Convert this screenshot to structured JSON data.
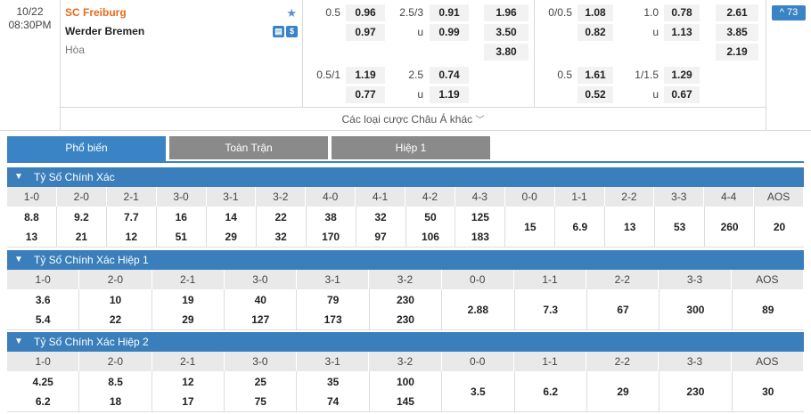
{
  "match": {
    "date": "10/22",
    "time": "08:30PM",
    "home": "SC Freiburg",
    "away": "Werder Bremen",
    "draw": "Hòa"
  },
  "icons": {
    "favorite": "star-icon",
    "stats": "stats-icon",
    "dollar": "dollar-icon"
  },
  "odds": {
    "g1": {
      "r1": {
        "line": "0.5",
        "home": "0.96",
        "away": "0.97"
      },
      "r2": {
        "line": "0.5/1",
        "home": "1.19",
        "away": "0.77"
      }
    },
    "g2": {
      "r1": {
        "line": "2.5/3",
        "over": "0.91",
        "u": "u",
        "under": "0.99"
      },
      "r2": {
        "line": "2.5",
        "over": "0.74",
        "u": "u",
        "under": "1.19"
      }
    },
    "g3": {
      "h": "1.96",
      "a": "3.50",
      "d": "3.80"
    },
    "g4": {
      "r1": {
        "line": "0/0.5",
        "home": "1.08",
        "away": "0.82"
      },
      "r2": {
        "line": "0.5",
        "home": "1.61",
        "away": "0.52"
      }
    },
    "g5": {
      "r1": {
        "line": "1.0",
        "over": "0.78",
        "u": "u",
        "under": "1.13"
      },
      "r2": {
        "line": "1/1.5",
        "over": "1.29",
        "u": "u",
        "under": "0.67"
      }
    },
    "g6": {
      "h": "2.61",
      "a": "3.85",
      "d": "2.19"
    }
  },
  "more_label": "Các loại cược Châu Á khác",
  "more_count": "^ 73",
  "tabs": [
    "Phổ biến",
    "Toàn Trận",
    "Hiệp 1"
  ],
  "sections": [
    {
      "title": "Tỷ Số Chính Xác",
      "headers": [
        "1-0",
        "2-0",
        "2-1",
        "3-0",
        "3-1",
        "3-2",
        "4-0",
        "4-1",
        "4-2",
        "4-3",
        "0-0",
        "1-1",
        "2-2",
        "3-3",
        "4-4",
        "AOS"
      ],
      "top": [
        "8.8",
        "9.2",
        "7.7",
        "16",
        "14",
        "22",
        "38",
        "32",
        "50",
        "125",
        "15",
        "6.9",
        "13",
        "53",
        "260",
        "20"
      ],
      "bottom": [
        "13",
        "21",
        "12",
        "51",
        "29",
        "32",
        "170",
        "97",
        "106",
        "183",
        "",
        "",
        "",
        "",
        "",
        ""
      ]
    },
    {
      "title": "Tỷ Số Chính Xác Hiệp 1",
      "headers": [
        "1-0",
        "2-0",
        "2-1",
        "3-0",
        "3-1",
        "3-2",
        "0-0",
        "1-1",
        "2-2",
        "3-3",
        "AOS"
      ],
      "top": [
        "3.6",
        "10",
        "19",
        "40",
        "79",
        "230",
        "2.88",
        "7.3",
        "67",
        "300",
        "89"
      ],
      "bottom": [
        "5.4",
        "22",
        "29",
        "127",
        "173",
        "230",
        "",
        "",
        "",
        "",
        ""
      ]
    },
    {
      "title": "Tỷ Số Chính Xác Hiệp 2",
      "headers": [
        "1-0",
        "2-0",
        "2-1",
        "3-0",
        "3-1",
        "3-2",
        "0-0",
        "1-1",
        "2-2",
        "3-3",
        "AOS"
      ],
      "top": [
        "4.25",
        "8.5",
        "12",
        "25",
        "35",
        "100",
        "3.5",
        "6.2",
        "29",
        "230",
        "30"
      ],
      "bottom": [
        "6.2",
        "18",
        "17",
        "75",
        "74",
        "145",
        "",
        "",
        "",
        "",
        ""
      ]
    }
  ]
}
